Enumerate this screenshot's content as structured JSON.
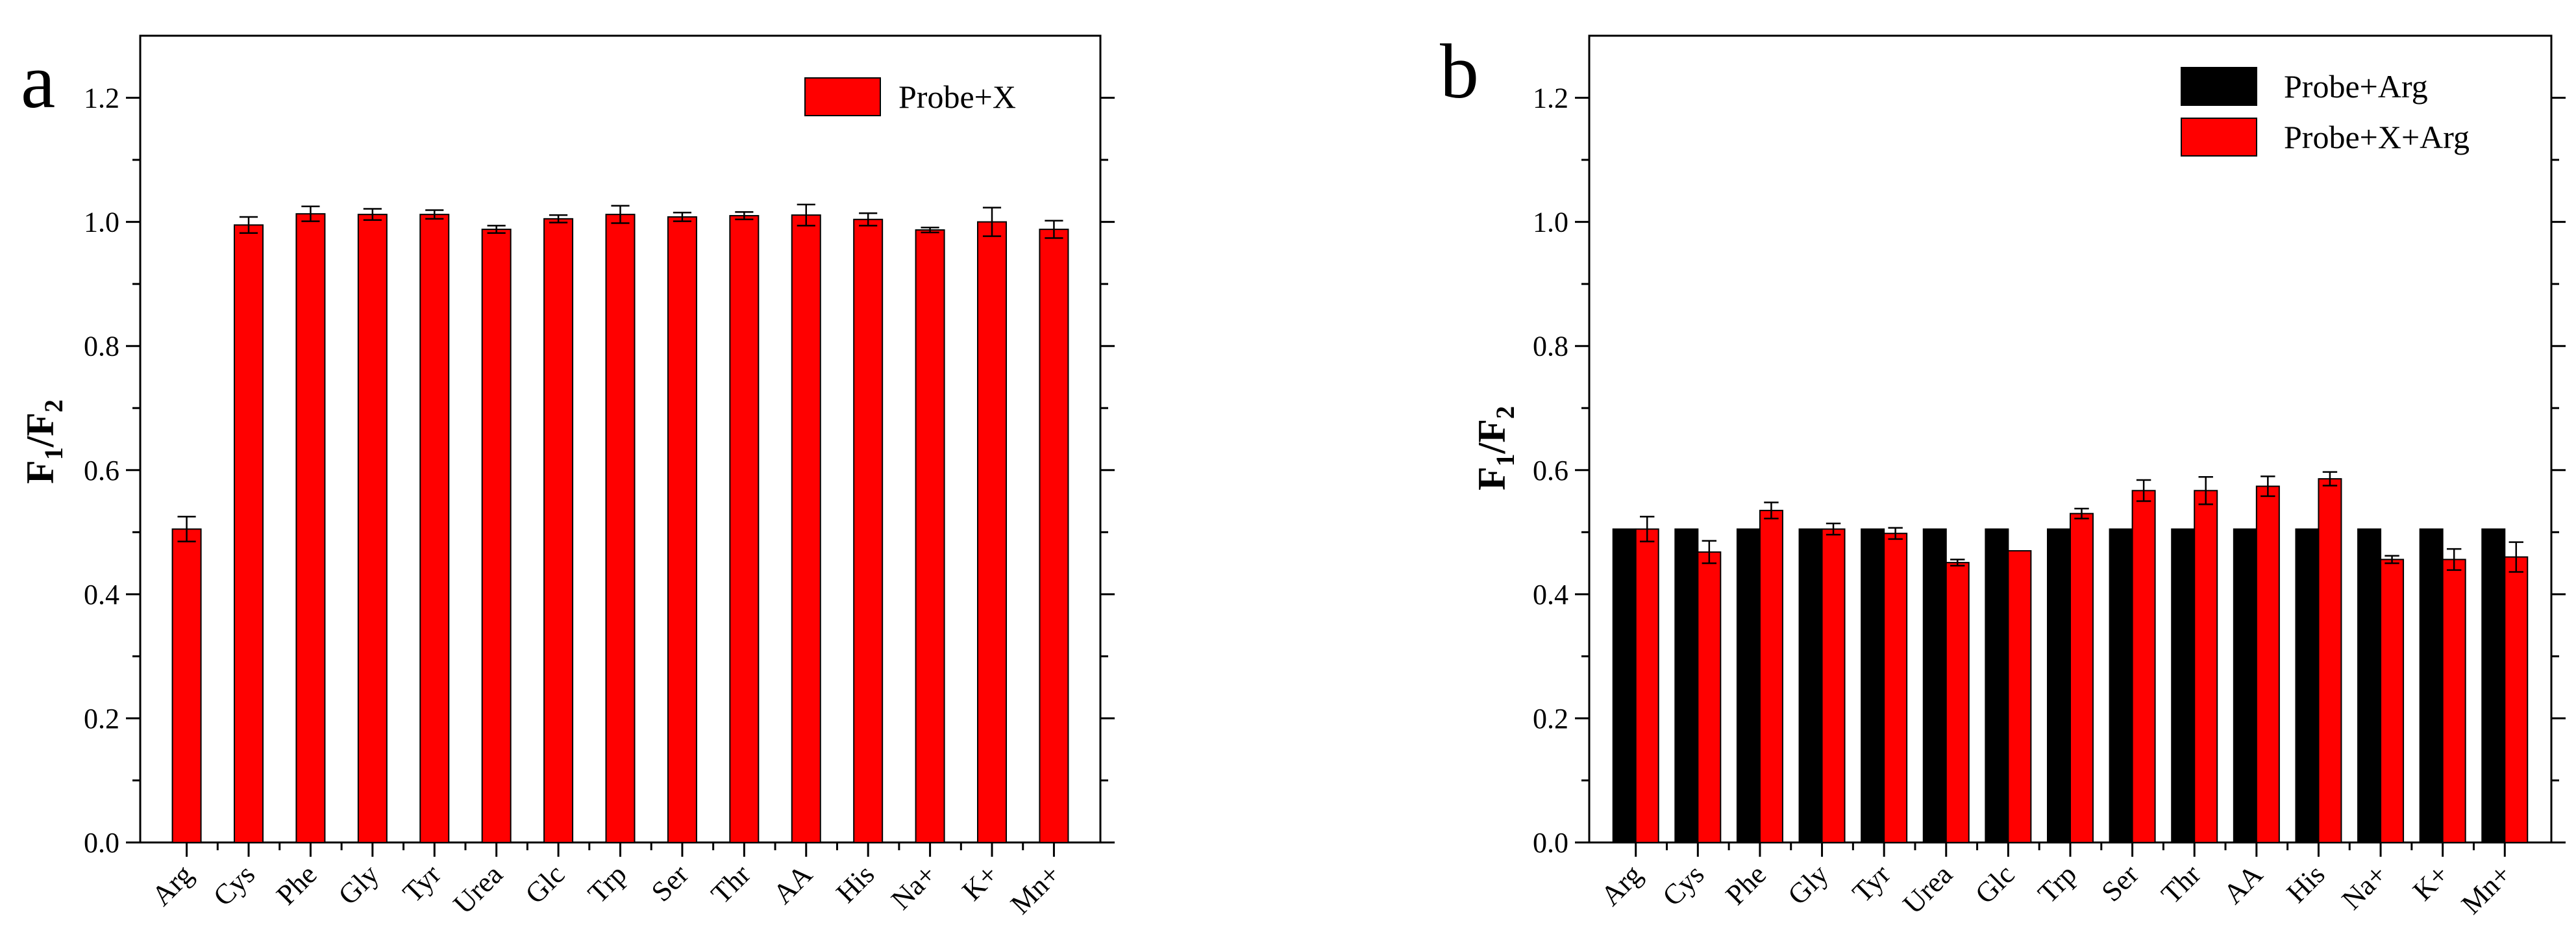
{
  "chart_data": [
    {
      "panel": "a",
      "type": "bar",
      "title": "",
      "xlabel": "",
      "ylabel_main": "F",
      "ylabel_sub1": "1",
      "ylabel_sep": "/F",
      "ylabel_sub2": "2",
      "ylim": [
        0,
        1.3
      ],
      "yticks": [
        "0.0",
        "0.2",
        "0.4",
        "0.6",
        "0.8",
        "1.0",
        "1.2"
      ],
      "ytick_values": [
        0,
        0.2,
        0.4,
        0.6,
        0.8,
        1.0,
        1.2
      ],
      "categories": [
        "Arg",
        "Cys",
        "Phe",
        "Gly",
        "Tyr",
        "Urea",
        "Glc",
        "Trp",
        "Ser",
        "Thr",
        "AA",
        "His",
        "Na+",
        "K+",
        "Mn+"
      ],
      "legend_position": "top-right",
      "series": [
        {
          "name": "Probe+X",
          "color": "#ff0000",
          "values": [
            0.505,
            0.995,
            1.013,
            1.012,
            1.012,
            0.988,
            1.005,
            1.012,
            1.008,
            1.01,
            1.011,
            1.004,
            0.987,
            1.0,
            0.988
          ],
          "errors": [
            0.02,
            0.013,
            0.012,
            0.009,
            0.007,
            0.006,
            0.006,
            0.014,
            0.007,
            0.006,
            0.017,
            0.01,
            0.004,
            0.023,
            0.014
          ]
        }
      ]
    },
    {
      "panel": "b",
      "type": "bar",
      "title": "",
      "xlabel": "",
      "ylabel_main": "F",
      "ylabel_sub1": "1",
      "ylabel_sep": "/F",
      "ylabel_sub2": "2",
      "ylim": [
        0,
        1.3
      ],
      "yticks": [
        "0.0",
        "0.2",
        "0.4",
        "0.6",
        "0.8",
        "1.0",
        "1.2"
      ],
      "ytick_values": [
        0,
        0.2,
        0.4,
        0.6,
        0.8,
        1.0,
        1.2
      ],
      "categories": [
        "Arg",
        "Cys",
        "Phe",
        "Gly",
        "Tyr",
        "Urea",
        "Glc",
        "Trp",
        "Ser",
        "Thr",
        "AA",
        "His",
        "Na+",
        "K+",
        "Mn+"
      ],
      "legend_position": "top-right",
      "series": [
        {
          "name": "Probe+Arg",
          "color": "#000000",
          "values": [
            0.505,
            0.505,
            0.505,
            0.505,
            0.505,
            0.505,
            0.505,
            0.505,
            0.505,
            0.505,
            0.505,
            0.505,
            0.505,
            0.505,
            0.505
          ],
          "errors": [
            0,
            0,
            0,
            0,
            0,
            0,
            0,
            0,
            0,
            0,
            0,
            0,
            0,
            0,
            0
          ]
        },
        {
          "name": "Probe+X+Arg",
          "color": "#ff0000",
          "values": [
            0.505,
            0.468,
            0.535,
            0.505,
            0.498,
            0.451,
            0.47,
            0.53,
            0.567,
            0.567,
            0.574,
            0.586,
            0.456,
            0.456,
            0.46
          ],
          "errors": [
            0.02,
            0.018,
            0.013,
            0.009,
            0.009,
            0.005,
            0.0,
            0.008,
            0.017,
            0.022,
            0.016,
            0.011,
            0.006,
            0.017,
            0.024
          ]
        }
      ]
    }
  ]
}
